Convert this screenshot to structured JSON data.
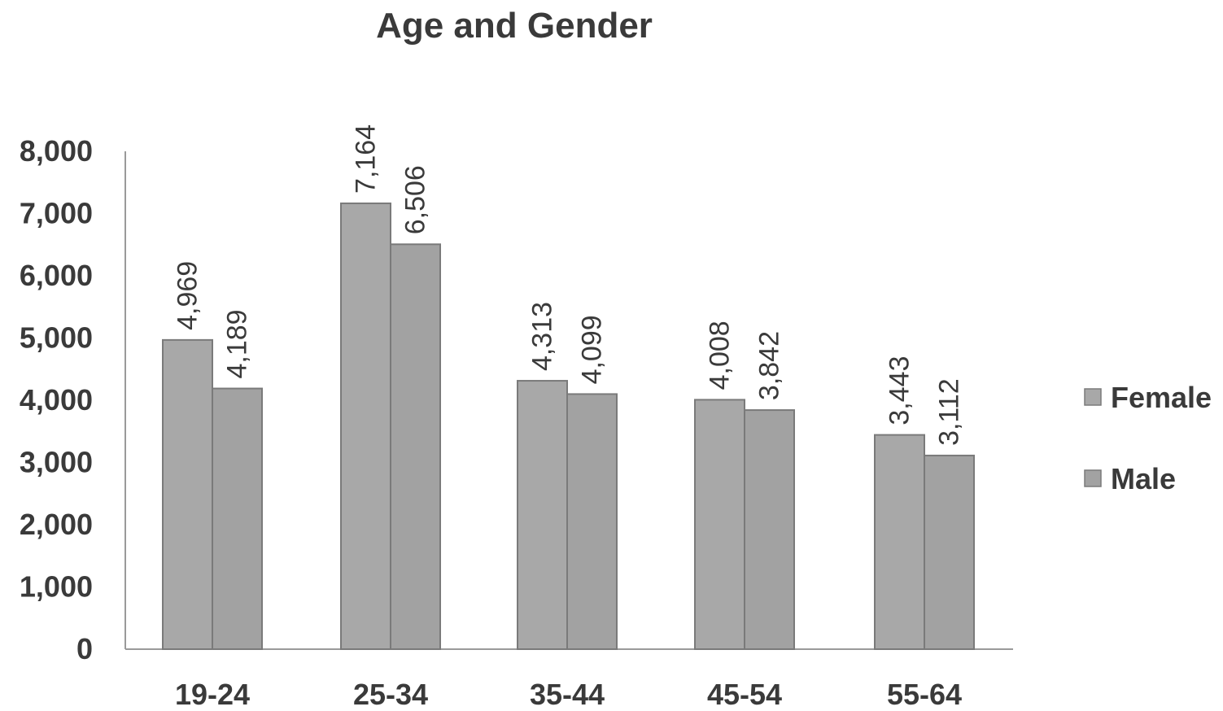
{
  "chart_data": {
    "type": "bar",
    "title": "Age and Gender",
    "xlabel": "",
    "ylabel": "",
    "categories": [
      "19-24",
      "25-34",
      "35-44",
      "45-54",
      "55-64"
    ],
    "series": [
      {
        "name": "Female",
        "values": [
          4969,
          7164,
          4313,
          4008,
          3443
        ],
        "labels": [
          "4,969",
          "7,164",
          "4,313",
          "4,008",
          "3,443"
        ],
        "color": "#a6a6a6"
      },
      {
        "name": "Male",
        "values": [
          4189,
          6506,
          4099,
          3842,
          3112
        ],
        "labels": [
          "4,189",
          "6,506",
          "4,099",
          "3,842",
          "3,112"
        ],
        "color": "#a0a0a0"
      }
    ],
    "ylim": [
      0,
      8000
    ],
    "yticks": [
      0,
      1000,
      2000,
      3000,
      4000,
      5000,
      6000,
      7000,
      8000
    ],
    "ytick_labels": [
      "0",
      "1,000",
      "2,000",
      "3,000",
      "4,000",
      "5,000",
      "6,000",
      "7,000",
      "8,000"
    ],
    "legend": "right",
    "grid": false,
    "data_labels": "rotated-vertical"
  }
}
